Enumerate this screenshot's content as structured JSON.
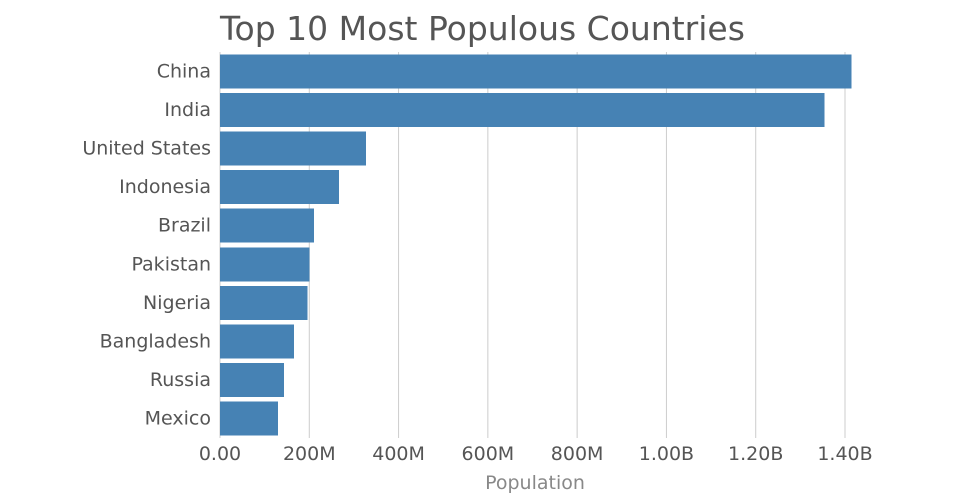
{
  "chart_data": {
    "type": "bar",
    "orientation": "horizontal",
    "title": "Top 10 Most Populous Countries",
    "xlabel": "Population",
    "ylabel": "",
    "categories": [
      "China",
      "India",
      "United States",
      "Indonesia",
      "Brazil",
      "Pakistan",
      "Nigeria",
      "Bangladesh",
      "Russia",
      "Mexico"
    ],
    "values": [
      1415000000,
      1354000000,
      327000000,
      267000000,
      211000000,
      201000000,
      196000000,
      166000000,
      143000000,
      130000000
    ],
    "xlim": [
      0,
      1400000000
    ],
    "xticks": [
      0,
      200000000,
      400000000,
      600000000,
      800000000,
      1000000000,
      1200000000,
      1400000000
    ],
    "xtick_labels": [
      "0.00",
      "200M",
      "400M",
      "600M",
      "800M",
      "1.00B",
      "1.20B",
      "1.40B"
    ],
    "grid": true,
    "bar_color": "#4682b4"
  }
}
